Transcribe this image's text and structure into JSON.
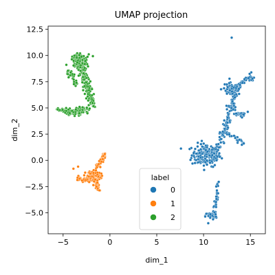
{
  "chart_data": {
    "type": "scatter",
    "title": "UMAP projection",
    "xlabel": "dim_1",
    "ylabel": "dim_2",
    "xlim": [
      -6.6,
      16.6
    ],
    "ylim": [
      -7.0,
      12.8
    ],
    "xticks": [
      -5,
      0,
      5,
      10,
      15
    ],
    "yticks": [
      -5.0,
      -2.5,
      0.0,
      2.5,
      5.0,
      7.5,
      10.0,
      12.5
    ],
    "xtick_labels": [
      "−5",
      "0",
      "5",
      "10",
      "15"
    ],
    "ytick_labels": [
      "−5.0",
      "−2.5",
      "0.0",
      "2.5",
      "5.0",
      "7.5",
      "10.0",
      "12.5"
    ],
    "grid": false,
    "legend": {
      "title": "label",
      "placement": "lower-center"
    },
    "series": [
      {
        "name": "0",
        "color": "#1f77b4",
        "clusters": [
          {
            "shape": "blob",
            "center": [
              10.3,
              0.5
            ],
            "spread": [
              1.3,
              0.9
            ],
            "count": 180
          },
          {
            "shape": "path",
            "points": [
              [
                11.2,
                0.2
              ],
              [
                11.8,
                1.8
              ],
              [
                12.4,
                3.3
              ],
              [
                13.0,
                4.8
              ],
              [
                13.2,
                6.0
              ],
              [
                13.0,
                7.1
              ]
            ],
            "spread": [
              0.35,
              0.35
            ],
            "count": 140
          },
          {
            "shape": "blob",
            "center": [
              13.0,
              6.8
            ],
            "spread": [
              0.9,
              0.5
            ],
            "count": 60
          },
          {
            "shape": "path",
            "points": [
              [
                13.5,
                6.8
              ],
              [
                14.2,
                7.4
              ],
              [
                14.9,
                8.0
              ],
              [
                15.2,
                7.6
              ]
            ],
            "spread": [
              0.25,
              0.3
            ],
            "count": 45
          },
          {
            "shape": "path",
            "points": [
              [
                13.0,
                4.8
              ],
              [
                13.8,
                4.3
              ],
              [
                14.5,
                4.6
              ]
            ],
            "spread": [
              0.25,
              0.25
            ],
            "count": 20
          },
          {
            "shape": "path",
            "points": [
              [
                12.3,
                2.6
              ],
              [
                13.6,
                2.0
              ],
              [
                14.3,
                1.6
              ]
            ],
            "spread": [
              0.3,
              0.25
            ],
            "count": 30
          },
          {
            "shape": "path",
            "points": [
              [
                11.6,
                -2.0
              ],
              [
                11.4,
                -3.0
              ],
              [
                11.3,
                -4.0
              ],
              [
                11.0,
                -4.8
              ],
              [
                11.2,
                -5.4
              ]
            ],
            "spread": [
              0.15,
              0.2
            ],
            "count": 45
          },
          {
            "shape": "blob",
            "center": [
              10.8,
              -5.3
            ],
            "spread": [
              0.5,
              0.3
            ],
            "count": 25
          },
          {
            "shape": "point",
            "points": [
              [
                10.5,
                -6.0
              ],
              [
                13.0,
                11.7
              ]
            ]
          }
        ]
      },
      {
        "name": "1",
        "color": "#ff7f0e",
        "clusters": [
          {
            "shape": "blob",
            "center": [
              -1.7,
              -1.5
            ],
            "spread": [
              0.6,
              0.5
            ],
            "count": 130
          },
          {
            "shape": "path",
            "points": [
              [
                -1.5,
                -0.8
              ],
              [
                -1.0,
                -0.2
              ],
              [
                -0.6,
                0.6
              ]
            ],
            "spread": [
              0.2,
              0.25
            ],
            "count": 45
          },
          {
            "shape": "path",
            "points": [
              [
                -2.2,
                -1.6
              ],
              [
                -3.0,
                -1.9
              ],
              [
                -3.5,
                -1.6
              ]
            ],
            "spread": [
              0.25,
              0.2
            ],
            "count": 25
          },
          {
            "shape": "path",
            "points": [
              [
                -1.5,
                -2.0
              ],
              [
                -1.3,
                -2.5
              ],
              [
                -1.2,
                -2.9
              ]
            ],
            "spread": [
              0.2,
              0.15
            ],
            "count": 25
          },
          {
            "shape": "point",
            "points": [
              [
                -3.9,
                -0.8
              ],
              [
                -3.4,
                -0.6
              ]
            ]
          }
        ]
      },
      {
        "name": "2",
        "color": "#2ca02c",
        "clusters": [
          {
            "shape": "blob",
            "center": [
              -3.3,
              9.6
            ],
            "spread": [
              0.7,
              0.45
            ],
            "count": 120
          },
          {
            "shape": "path",
            "points": [
              [
                -3.3,
                9.5
              ],
              [
                -3.0,
                8.6
              ],
              [
                -2.6,
                7.6
              ],
              [
                -2.3,
                6.6
              ],
              [
                -2.0,
                5.6
              ]
            ],
            "spread": [
              0.45,
              0.35
            ],
            "count": 160
          },
          {
            "shape": "path",
            "points": [
              [
                -4.5,
                8.6
              ],
              [
                -4.0,
                8.0
              ],
              [
                -3.6,
                7.2
              ]
            ],
            "spread": [
              0.2,
              0.3
            ],
            "count": 40
          },
          {
            "shape": "blob",
            "center": [
              -3.4,
              4.7
            ],
            "spread": [
              1.0,
              0.3
            ],
            "count": 90
          },
          {
            "shape": "path",
            "points": [
              [
                -5.6,
                4.9
              ],
              [
                -4.6,
                4.6
              ],
              [
                -3.2,
                4.5
              ]
            ],
            "spread": [
              0.2,
              0.15
            ],
            "count": 40
          },
          {
            "shape": "path",
            "points": [
              [
                -2.0,
                5.8
              ],
              [
                -1.6,
                5.0
              ]
            ],
            "spread": [
              0.15,
              0.2
            ],
            "count": 20
          }
        ]
      }
    ]
  }
}
